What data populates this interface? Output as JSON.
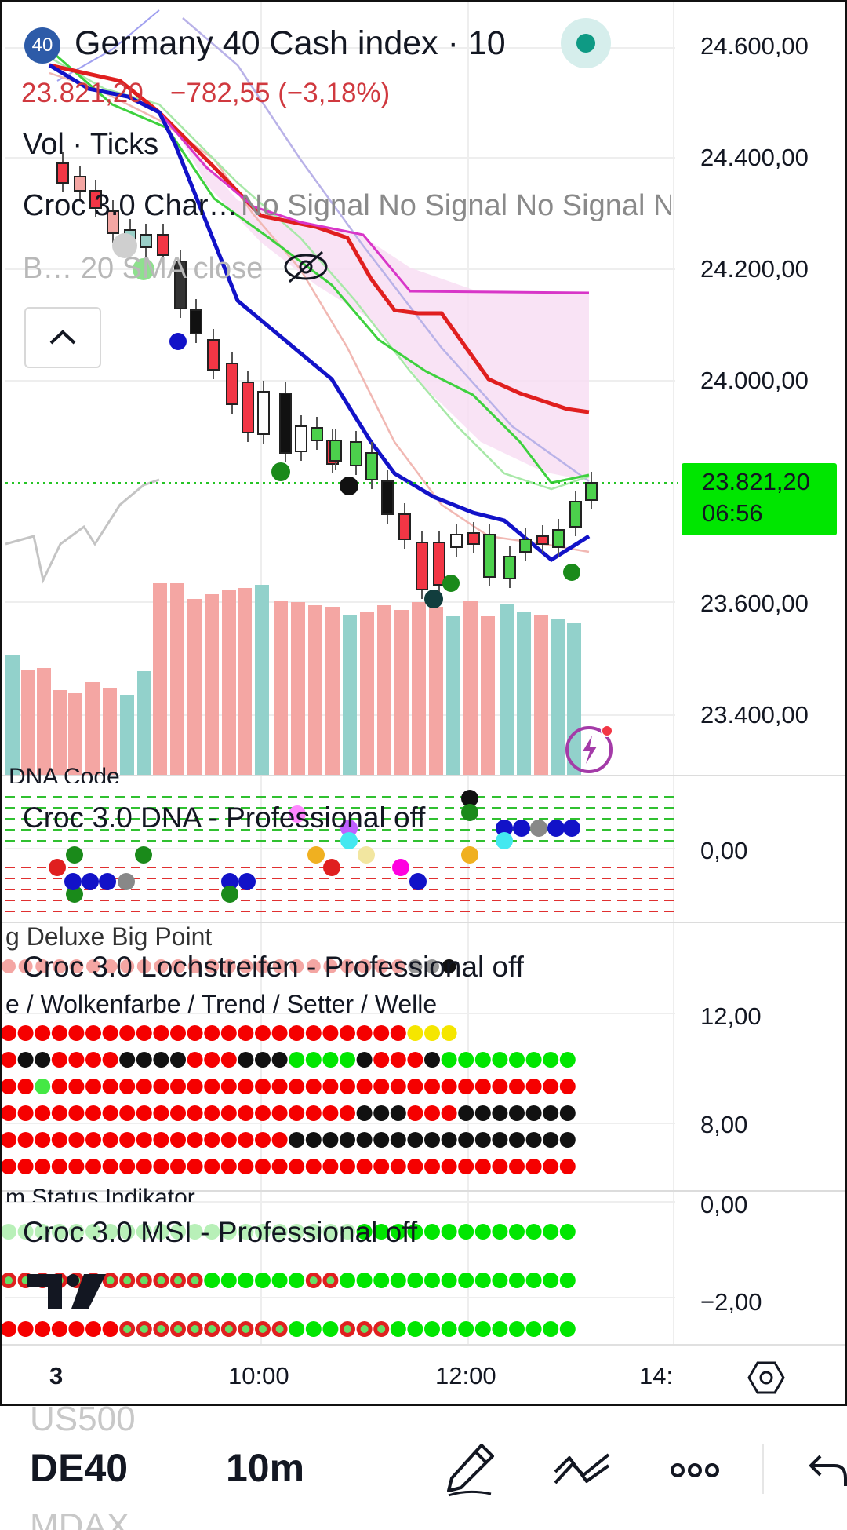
{
  "header": {
    "badge": "40",
    "symbol_title": "Germany 40 Cash index · 10",
    "price": "23.821,20",
    "change": "−782,55 (−3,18%)"
  },
  "legends": {
    "volume": "Vol · Ticks",
    "croc_chart": "Croc 3.0 Char…",
    "signals": "No Signal No Signal No Signal N",
    "bollinger": "B… 20 SMA close"
  },
  "price_axis": [
    "24.600,00",
    "24.400,00",
    "24.200,00",
    "24.000,00",
    "23.600,00",
    "23.400,00"
  ],
  "last_price": {
    "value": "23.821,20",
    "timer": "06:56",
    "color": "#00e600"
  },
  "pane_dna": {
    "title": "DNA Code",
    "legend": "Croc 3.0 DNA - Professional off",
    "axis": "0,00"
  },
  "pane_bigpoint": {
    "title": "g Deluxe Big Point"
  },
  "pane_lochstreifen": {
    "legend": "Croc 3.0 Lochstreifen - Professional off",
    "subtitle": "e / Wolkenfarbe / Trend / Setter / Welle",
    "axis_top": "12,00",
    "axis_bottom": "8,00"
  },
  "pane_msi": {
    "title": "m Status Indikator",
    "legend": "Croc 3.0 MSI - Professional off",
    "axis_top": "0,00",
    "axis_bottom": "−2,00"
  },
  "time_axis": [
    "3",
    "10:00",
    "12:00",
    "14:"
  ],
  "bottom_bar": {
    "symbol_above": "US500",
    "symbol": "DE40",
    "symbol_below": "MDAX",
    "interval": "10m"
  },
  "colors": {
    "bearish": "#f23645",
    "bullish": "#22ab94",
    "red_text": "#d0393f",
    "band_fill": "#f8d8f0"
  },
  "icons": [
    "hide-eye-icon",
    "collapse-chevron-icon",
    "lightning-alert-icon",
    "settings-hexagon-icon",
    "pencil-icon",
    "drawing-tools-icon",
    "more-icon",
    "undo-icon",
    "tradingview-logo"
  ]
}
